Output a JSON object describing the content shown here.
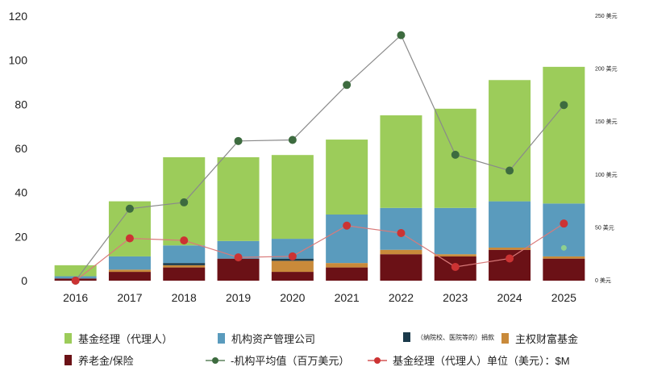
{
  "chart_data": {
    "type": "bar",
    "stacked": true,
    "categories": [
      "2016",
      "2017",
      "2018",
      "2019",
      "2020",
      "2021",
      "2022",
      "2023",
      "2024",
      "2025"
    ],
    "series": [
      {
        "name": "养老金/保险",
        "color": "#6b1116",
        "values": [
          1,
          4,
          6,
          10,
          4,
          6,
          12,
          11,
          14,
          10
        ]
      },
      {
        "name": "主权财富基金",
        "color": "#c98a3a",
        "values": [
          0,
          1,
          1,
          0,
          5,
          2,
          2,
          1,
          1,
          1
        ]
      },
      {
        "name": "（纳院校、医院等的）捐款",
        "color": "#1b3a4b",
        "values": [
          0,
          0,
          1,
          0,
          1,
          0,
          0,
          0,
          0,
          0
        ]
      },
      {
        "name": "机构资产管理公司",
        "color": "#5a9bbd",
        "values": [
          1,
          6,
          8,
          8,
          9,
          22,
          19,
          21,
          21,
          24
        ]
      },
      {
        "name": "基金经理（代理人）",
        "color": "#9ccc5a",
        "values": [
          5,
          25,
          40,
          38,
          38,
          34,
          42,
          45,
          55,
          62
        ]
      }
    ],
    "lines": [
      {
        "name": "-机构平均值（百万美元）",
        "axis": "right",
        "color": "#3d6b3f",
        "values": [
          0,
          68,
          74,
          132,
          133,
          185,
          232,
          119,
          104,
          166
        ]
      },
      {
        "name": "基金经理（代理人）单位（美元）：$M",
        "axis": "right",
        "color": "#cc3333",
        "values": [
          0,
          40,
          38,
          22,
          23,
          52,
          45,
          13,
          21,
          54
        ]
      }
    ],
    "extra_points": [
      {
        "x": "2025",
        "y": 31,
        "axis": "right",
        "color": "#8fcf8f"
      }
    ],
    "ylim": [
      0,
      120
    ],
    "yticks": [
      "0",
      "20",
      "40",
      "60",
      "80",
      "100",
      "120"
    ],
    "y2lim": [
      0,
      250
    ],
    "y2ticks": [
      "0 美元",
      "50 美元",
      "100 美元",
      "150 美元",
      "200 美元",
      "250 美元"
    ],
    "grid": false,
    "legend_position": "bottom"
  },
  "legend": {
    "fund_manager": "基金经理（代理人）",
    "asset_mgmt": "机构资产管理公司",
    "endowment": "（纳院校、医院等的）捐款",
    "sovereign": "主权财富基金",
    "pension": "养老金/保险",
    "inst_avg": "-机构平均值（百万美元）",
    "fm_unit": "基金经理（代理人）单位（美元）：$M"
  },
  "colors": {
    "fund_manager": "#9ccc5a",
    "asset_mgmt": "#5a9bbd",
    "endowment": "#1b3a4b",
    "sovereign": "#c98a3a",
    "pension": "#6b1116",
    "inst_avg": "#3d6b3f",
    "fm_unit": "#cc3333"
  }
}
